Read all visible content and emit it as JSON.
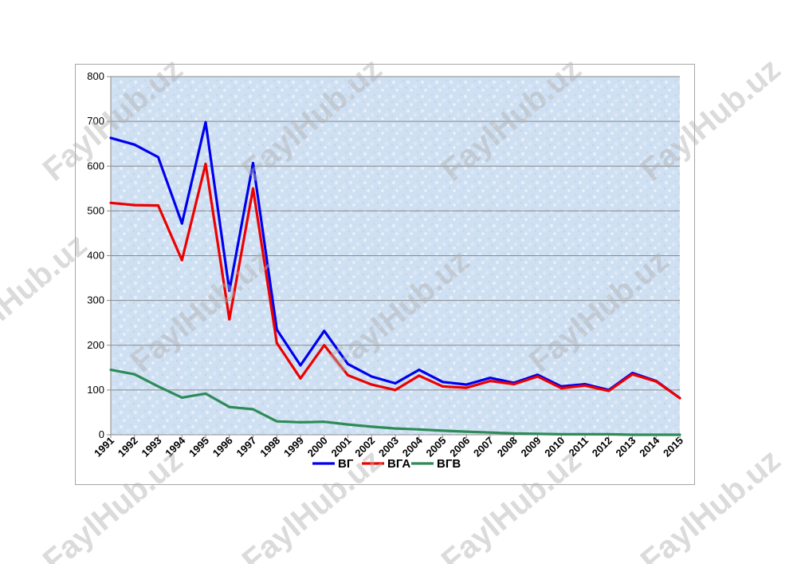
{
  "watermark": "FaylHub.uz",
  "chart_data": {
    "type": "line",
    "title": "",
    "xlabel": "",
    "ylabel": "",
    "ylim": [
      0,
      800
    ],
    "yticks": [
      0,
      100,
      200,
      300,
      400,
      500,
      600,
      700,
      800
    ],
    "grid": true,
    "legend_position": "bottom",
    "categories": [
      "1991",
      "1992",
      "1993",
      "1994",
      "1995",
      "1996",
      "1997",
      "1998",
      "1999",
      "2000",
      "2001",
      "2002",
      "2003",
      "2004",
      "2005",
      "2006",
      "2007",
      "2008",
      "2009",
      "2010",
      "2011",
      "2012",
      "2013",
      "2014",
      "2015"
    ],
    "series": [
      {
        "name": "ВГ",
        "color": "#0000ee",
        "values": [
          663,
          648,
          620,
          472,
          698,
          322,
          607,
          235,
          155,
          232,
          158,
          130,
          115,
          145,
          118,
          112,
          127,
          116,
          134,
          108,
          113,
          100,
          138,
          120,
          82
        ]
      },
      {
        "name": "ВГА",
        "color": "#ee0000",
        "values": [
          518,
          513,
          512,
          390,
          605,
          258,
          550,
          205,
          126,
          200,
          133,
          112,
          100,
          132,
          108,
          105,
          120,
          113,
          130,
          104,
          110,
          98,
          135,
          119,
          82
        ]
      },
      {
        "name": "ВГВ",
        "color": "#2e8b57",
        "values": [
          145,
          135,
          108,
          83,
          92,
          62,
          57,
          30,
          28,
          29,
          23,
          18,
          14,
          12,
          9,
          7,
          5,
          3,
          2,
          1,
          1,
          1,
          0,
          0,
          0
        ]
      }
    ]
  }
}
